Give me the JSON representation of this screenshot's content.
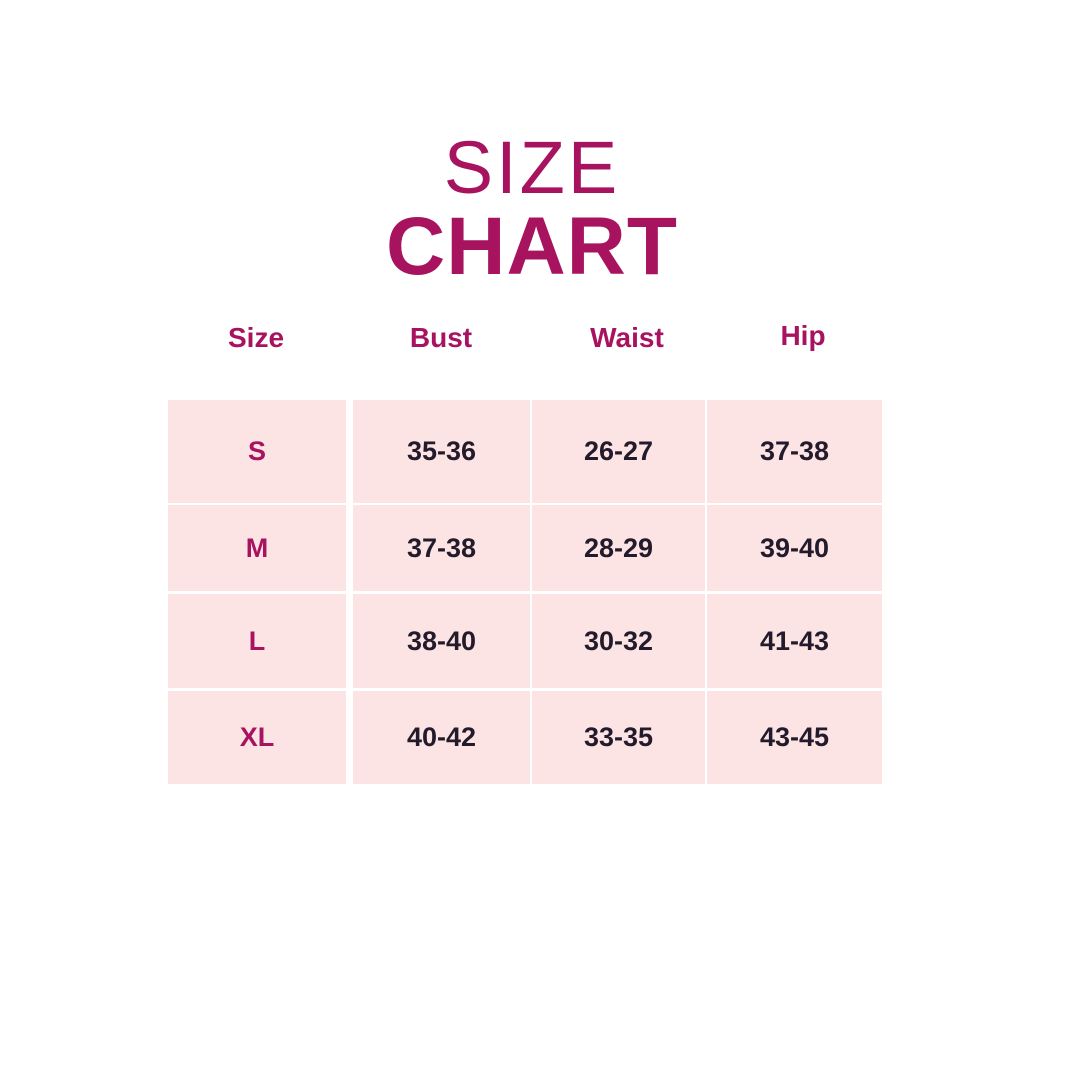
{
  "title": {
    "line1": "SIZE",
    "line2": "CHART"
  },
  "colors": {
    "accent": "#a8135f",
    "cell_bg": "#fce4e4",
    "value_text": "#231b2b"
  },
  "columns": [
    "Size",
    "Bust",
    "Waist",
    "Hip"
  ],
  "rows": [
    [
      "S",
      "35-36",
      "26-27",
      "37-38"
    ],
    [
      "M",
      "37-38",
      "28-29",
      "39-40"
    ],
    [
      "L",
      "38-40",
      "30-32",
      "41-43"
    ],
    [
      "XL",
      "40-42",
      "33-35",
      "43-45"
    ]
  ]
}
